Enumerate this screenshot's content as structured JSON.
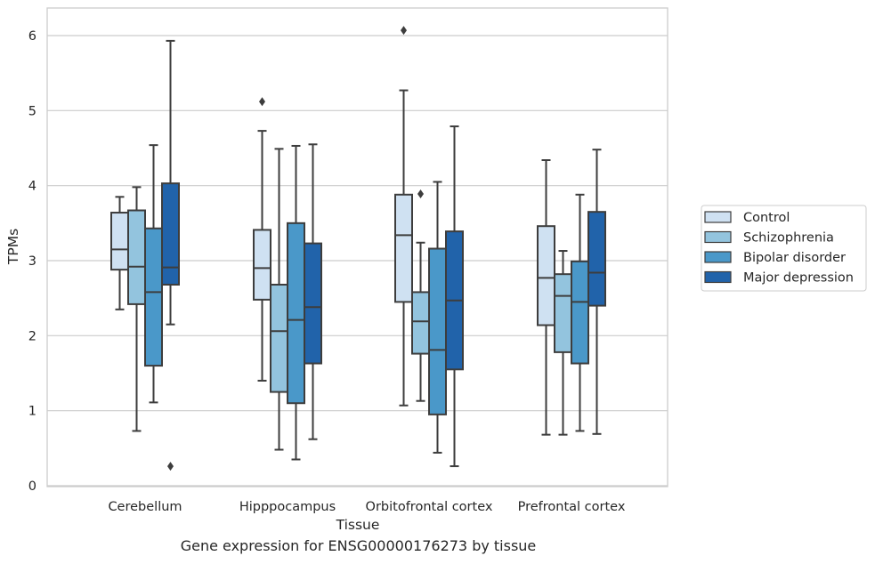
{
  "caption": "Gene expression for ENSG00000176273 by tissue",
  "chart_data": {
    "type": "boxplot",
    "xlabel": "Tissue",
    "ylabel": "TPMs",
    "ylim": [
      0,
      6.35
    ],
    "yticks": [
      0,
      1,
      2,
      3,
      4,
      5,
      6
    ],
    "grid": true,
    "legend_position": "right",
    "categories": [
      "Cerebellum",
      "Hipppocampus",
      "Orbitofrontal cortex",
      "Prefrontal cortex"
    ],
    "series": [
      {
        "name": "Control",
        "color": "#cfe1f2",
        "boxes": [
          {
            "whisker_low": 2.35,
            "q1": 2.88,
            "median": 3.15,
            "q3": 3.64,
            "whisker_high": 3.85,
            "outliers": []
          },
          {
            "whisker_low": 1.4,
            "q1": 2.48,
            "median": 2.9,
            "q3": 3.41,
            "whisker_high": 4.73,
            "outliers": [
              5.12
            ]
          },
          {
            "whisker_low": 1.07,
            "q1": 2.45,
            "median": 3.34,
            "q3": 3.88,
            "whisker_high": 5.27,
            "outliers": [
              6.07
            ]
          },
          {
            "whisker_low": 0.68,
            "q1": 2.14,
            "median": 2.77,
            "q3": 3.46,
            "whisker_high": 4.34,
            "outliers": []
          }
        ]
      },
      {
        "name": "Schizophrenia",
        "color": "#93c4de",
        "boxes": [
          {
            "whisker_low": 0.73,
            "q1": 2.42,
            "median": 2.92,
            "q3": 3.67,
            "whisker_high": 3.98,
            "outliers": []
          },
          {
            "whisker_low": 0.48,
            "q1": 1.25,
            "median": 2.06,
            "q3": 2.68,
            "whisker_high": 4.49,
            "outliers": []
          },
          {
            "whisker_low": 1.13,
            "q1": 1.76,
            "median": 2.19,
            "q3": 2.58,
            "whisker_high": 3.24,
            "outliers": [
              3.89
            ]
          },
          {
            "whisker_low": 0.68,
            "q1": 1.78,
            "median": 2.53,
            "q3": 2.82,
            "whisker_high": 3.13,
            "outliers": []
          }
        ]
      },
      {
        "name": "Bipolar disorder",
        "color": "#4a98c9",
        "boxes": [
          {
            "whisker_low": 1.11,
            "q1": 1.6,
            "median": 2.58,
            "q3": 3.43,
            "whisker_high": 4.54,
            "outliers": []
          },
          {
            "whisker_low": 0.35,
            "q1": 1.1,
            "median": 2.21,
            "q3": 3.5,
            "whisker_high": 4.53,
            "outliers": []
          },
          {
            "whisker_low": 0.44,
            "q1": 0.95,
            "median": 1.81,
            "q3": 3.16,
            "whisker_high": 4.05,
            "outliers": []
          },
          {
            "whisker_low": 0.73,
            "q1": 1.63,
            "median": 2.45,
            "q3": 2.99,
            "whisker_high": 3.88,
            "outliers": []
          }
        ]
      },
      {
        "name": "Major depression",
        "color": "#2163aa",
        "boxes": [
          {
            "whisker_low": 2.15,
            "q1": 2.68,
            "median": 2.91,
            "q3": 4.03,
            "whisker_high": 5.93,
            "outliers": [
              0.26
            ]
          },
          {
            "whisker_low": 0.62,
            "q1": 1.63,
            "median": 2.38,
            "q3": 3.23,
            "whisker_high": 4.55,
            "outliers": []
          },
          {
            "whisker_low": 0.26,
            "q1": 1.55,
            "median": 2.47,
            "q3": 3.39,
            "whisker_high": 4.79,
            "outliers": []
          },
          {
            "whisker_low": 0.69,
            "q1": 2.4,
            "median": 2.84,
            "q3": 3.65,
            "whisker_high": 4.48,
            "outliers": []
          }
        ]
      }
    ]
  }
}
